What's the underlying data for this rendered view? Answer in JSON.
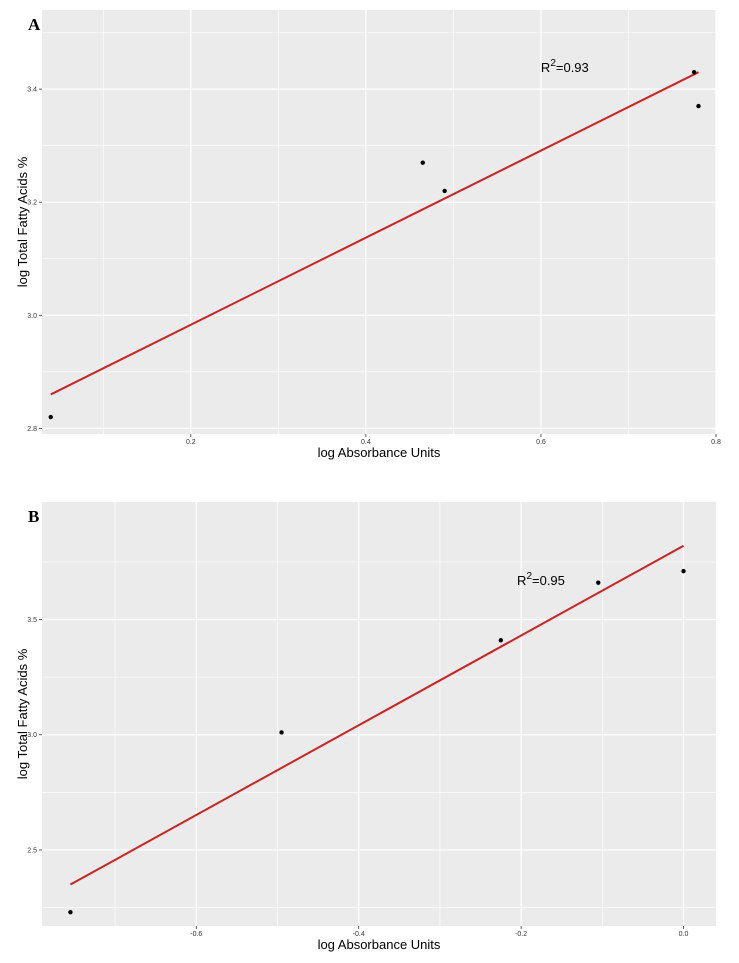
{
  "chart_data": [
    {
      "panel": "A",
      "type": "scatter",
      "xlabel": "log Absorbance Units",
      "ylabel": "log Total Fatty Acids %",
      "xlim": [
        0.03,
        0.8
      ],
      "ylim": [
        2.79,
        3.54
      ],
      "x_ticks": [
        0.2,
        0.4,
        0.6,
        0.8
      ],
      "x_tick_labels": [
        "0.2",
        "0.4",
        "0.6",
        "0.8"
      ],
      "y_ticks": [
        2.8,
        3.0,
        3.2,
        3.4
      ],
      "y_tick_labels": [
        "2.8",
        "3.0",
        "3.2",
        "3.4"
      ],
      "points": [
        {
          "x": 0.04,
          "y": 2.82
        },
        {
          "x": 0.465,
          "y": 3.27
        },
        {
          "x": 0.49,
          "y": 3.22
        },
        {
          "x": 0.775,
          "y": 3.43
        },
        {
          "x": 0.78,
          "y": 3.37
        }
      ],
      "fit_line": {
        "x": [
          0.04,
          0.78
        ],
        "y": [
          2.86,
          3.43
        ],
        "color": "#cc2222"
      },
      "annotation": {
        "base": "R",
        "sup": "2",
        "rest": "=0.93",
        "x": 0.6,
        "y": 3.43
      },
      "grid": true,
      "background": "#ebebeb"
    },
    {
      "panel": "B",
      "type": "scatter",
      "xlabel": "log Absorbance Units",
      "ylabel": "log Total Fatty Acids %",
      "xlim": [
        -0.79,
        0.04
      ],
      "ylim": [
        2.17,
        4.01
      ],
      "x_ticks": [
        -0.6,
        -0.4,
        -0.2,
        0.0
      ],
      "x_tick_labels": [
        "-0.6",
        "-0.4",
        "-0.2",
        "0.0"
      ],
      "y_ticks": [
        2.5,
        3.0,
        3.5
      ],
      "y_tick_labels": [
        "2.5",
        "3.0",
        "3.5"
      ],
      "points": [
        {
          "x": -0.755,
          "y": 2.23
        },
        {
          "x": -0.495,
          "y": 3.01
        },
        {
          "x": -0.225,
          "y": 3.41
        },
        {
          "x": -0.105,
          "y": 3.66
        },
        {
          "x": 0.0,
          "y": 3.71
        }
      ],
      "fit_line": {
        "x": [
          -0.755,
          0.0
        ],
        "y": [
          2.35,
          3.82
        ],
        "color": "#cc2222"
      },
      "annotation": {
        "base": "R",
        "sup": "2",
        "rest": "=0.95",
        "x": -0.205,
        "y": 3.65
      },
      "grid": true,
      "background": "#ebebeb"
    }
  ]
}
